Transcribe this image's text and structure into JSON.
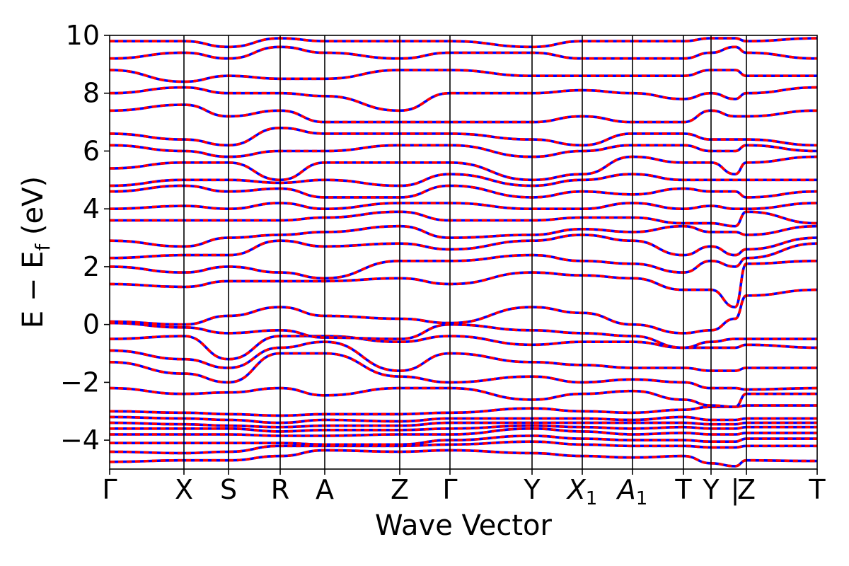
{
  "chart_data": {
    "type": "line",
    "title": "",
    "xlabel": "Wave Vector",
    "ylabel_parts": [
      "E − E",
      "f",
      " (eV)"
    ],
    "ylim": [
      -5,
      10
    ],
    "y_ticks": [
      {
        "value": 10,
        "label": "10"
      },
      {
        "value": 8,
        "label": "8"
      },
      {
        "value": 6,
        "label": "6"
      },
      {
        "value": 4,
        "label": "4"
      },
      {
        "value": 2,
        "label": "2"
      },
      {
        "value": 0,
        "label": "0"
      },
      {
        "value": -2,
        "label": "−2"
      },
      {
        "value": -4,
        "label": "−4"
      }
    ],
    "k_points": [
      {
        "k": 0.0,
        "label": "Γ"
      },
      {
        "k": 0.105,
        "label": "X"
      },
      {
        "k": 0.168,
        "label": "S"
      },
      {
        "k": 0.241,
        "label": "R"
      },
      {
        "k": 0.304,
        "label": "A"
      },
      {
        "k": 0.41,
        "label": "Z"
      },
      {
        "k": 0.481,
        "label": "Γ"
      },
      {
        "k": 0.597,
        "label": "Y"
      },
      {
        "k": 0.668,
        "label": "X",
        "sub": "1"
      },
      {
        "k": 0.739,
        "label": "A",
        "sub": "1"
      },
      {
        "k": 0.811,
        "label": "T"
      },
      {
        "k": 0.85,
        "label": "Y"
      },
      {
        "k": 0.884,
        "label": "|",
        "discontinuity": true
      },
      {
        "k": 0.9,
        "label": "Z"
      },
      {
        "k": 1.0,
        "label": "T"
      }
    ],
    "styles": {
      "band_a_color": "#ff0000",
      "band_b_color": "#0000ff",
      "band_b_dashed": true
    },
    "bands": [
      [
        -4.75,
        -4.7,
        -4.7,
        -4.55,
        -4.35,
        -4.4,
        -4.35,
        -4.45,
        -4.55,
        -4.6,
        -4.55,
        -4.8,
        -4.9,
        -4.7,
        -4.72
      ],
      [
        -4.4,
        -4.45,
        -4.4,
        -4.2,
        -4.2,
        -4.2,
        -4.15,
        -4.05,
        -4.15,
        -4.2,
        -4.2,
        -4.25,
        -4.25,
        -4.2,
        -4.2
      ],
      [
        -4.1,
        -4.1,
        -4.1,
        -4.1,
        -4.15,
        -4.15,
        -4.0,
        -3.85,
        -3.95,
        -4.0,
        -4.0,
        -4.05,
        -4.05,
        -3.95,
        -3.95
      ],
      [
        -3.8,
        -3.8,
        -3.8,
        -3.85,
        -3.85,
        -3.8,
        -3.8,
        -3.6,
        -3.7,
        -3.8,
        -3.75,
        -3.8,
        -3.8,
        -3.75,
        -3.75
      ],
      [
        -3.6,
        -3.6,
        -3.6,
        -3.7,
        -3.65,
        -3.65,
        -3.6,
        -3.5,
        -3.55,
        -3.6,
        -3.55,
        -3.6,
        -3.6,
        -3.55,
        -3.55
      ],
      [
        -3.4,
        -3.45,
        -3.5,
        -3.55,
        -3.5,
        -3.5,
        -3.4,
        -3.4,
        -3.4,
        -3.4,
        -3.4,
        -3.45,
        -3.45,
        -3.4,
        -3.4
      ],
      [
        -3.2,
        -3.25,
        -3.3,
        -3.4,
        -3.3,
        -3.35,
        -3.25,
        -3.25,
        -3.25,
        -3.3,
        -3.2,
        -3.3,
        -3.3,
        -3.25,
        -3.25
      ],
      [
        -3.0,
        -3.05,
        -3.1,
        -3.15,
        -3.1,
        -3.1,
        -3.05,
        -2.9,
        -3.0,
        -3.05,
        -2.95,
        -2.85,
        -2.85,
        -2.8,
        -2.8
      ],
      [
        -2.2,
        -2.4,
        -2.35,
        -2.2,
        -2.45,
        -2.2,
        -2.2,
        -2.6,
        -2.4,
        -2.3,
        -2.6,
        -2.8,
        -2.85,
        -2.4,
        -2.4
      ],
      [
        -1.3,
        -1.7,
        -2.0,
        -1.0,
        -1.0,
        -1.8,
        -2.0,
        -1.8,
        -2.0,
        -1.9,
        -2.0,
        -2.2,
        -2.2,
        -2.25,
        -2.2
      ],
      [
        -0.9,
        -1.2,
        -1.5,
        -0.8,
        -0.6,
        -1.6,
        -1.0,
        -1.3,
        -1.4,
        -1.5,
        -1.5,
        -1.6,
        -1.6,
        -1.5,
        -1.5
      ],
      [
        -0.5,
        -0.4,
        -1.2,
        -0.4,
        -0.4,
        -0.6,
        -0.4,
        -0.7,
        -0.6,
        -0.6,
        -0.8,
        -0.8,
        -0.8,
        -0.7,
        -0.8
      ],
      [
        0.05,
        -0.1,
        -0.3,
        -0.2,
        -0.45,
        -0.5,
        0.0,
        -0.2,
        -0.3,
        -0.4,
        -0.8,
        -0.6,
        -0.5,
        -0.5,
        -0.5
      ],
      [
        0.1,
        0.0,
        0.3,
        0.6,
        0.3,
        0.2,
        0.05,
        0.6,
        0.4,
        0.0,
        -0.3,
        -0.2,
        0.2,
        1.0,
        1.2
      ],
      [
        1.4,
        1.3,
        1.5,
        1.5,
        1.5,
        1.6,
        1.4,
        1.8,
        1.7,
        1.6,
        1.2,
        1.2,
        0.6,
        2.1,
        2.2
      ],
      [
        2.0,
        1.8,
        2.0,
        1.8,
        1.6,
        2.2,
        2.2,
        2.4,
        2.2,
        2.1,
        1.8,
        2.2,
        2.0,
        2.3,
        2.8
      ],
      [
        2.3,
        2.4,
        2.4,
        2.9,
        2.7,
        2.8,
        2.6,
        2.9,
        3.1,
        2.9,
        2.4,
        2.7,
        2.4,
        2.6,
        3.0
      ],
      [
        2.9,
        2.7,
        3.0,
        3.1,
        3.2,
        3.4,
        3.0,
        3.1,
        3.3,
        3.2,
        3.4,
        3.2,
        3.2,
        3.1,
        3.4
      ],
      [
        3.6,
        3.6,
        3.6,
        3.6,
        3.7,
        3.9,
        3.6,
        3.6,
        3.7,
        3.7,
        3.5,
        3.5,
        3.4,
        3.9,
        3.5
      ],
      [
        4.0,
        4.1,
        4.0,
        4.2,
        4.0,
        4.2,
        4.2,
        4.0,
        4.0,
        4.2,
        4.0,
        4.1,
        4.0,
        4.0,
        4.2
      ],
      [
        4.6,
        4.8,
        4.6,
        4.7,
        4.4,
        4.4,
        4.8,
        4.4,
        4.6,
        4.5,
        4.7,
        4.6,
        4.6,
        4.4,
        4.6
      ],
      [
        4.8,
        5.0,
        5.0,
        4.9,
        5.0,
        4.8,
        5.2,
        4.8,
        5.0,
        5.2,
        5.0,
        5.0,
        5.0,
        5.0,
        5.0
      ],
      [
        5.4,
        5.6,
        5.6,
        5.0,
        5.6,
        5.6,
        5.6,
        5.0,
        5.2,
        5.8,
        5.6,
        5.6,
        5.2,
        5.6,
        5.8
      ],
      [
        6.2,
        6.0,
        5.8,
        6.0,
        6.0,
        6.2,
        6.2,
        5.8,
        6.0,
        6.2,
        6.2,
        6.0,
        6.0,
        6.2,
        6.0
      ],
      [
        6.6,
        6.4,
        6.2,
        6.8,
        6.6,
        6.6,
        6.6,
        6.4,
        6.2,
        6.6,
        6.6,
        6.4,
        6.4,
        6.4,
        6.2
      ],
      [
        7.4,
        7.6,
        7.2,
        7.4,
        7.0,
        7.0,
        7.0,
        7.0,
        7.2,
        7.0,
        7.0,
        7.4,
        7.2,
        7.2,
        7.4
      ],
      [
        8.0,
        8.2,
        8.0,
        8.0,
        7.9,
        7.4,
        8.0,
        8.0,
        8.1,
        8.0,
        7.8,
        8.0,
        7.8,
        8.0,
        8.2
      ],
      [
        8.8,
        8.4,
        8.6,
        8.5,
        8.5,
        8.8,
        8.8,
        8.6,
        8.6,
        8.6,
        8.6,
        8.8,
        8.8,
        8.6,
        8.6
      ],
      [
        9.2,
        9.4,
        9.2,
        9.6,
        9.4,
        9.2,
        9.4,
        9.4,
        9.2,
        9.2,
        9.2,
        9.4,
        9.6,
        9.4,
        9.2
      ],
      [
        9.8,
        9.8,
        9.6,
        9.9,
        9.8,
        9.8,
        9.8,
        9.6,
        9.8,
        9.8,
        9.8,
        9.9,
        9.9,
        9.8,
        9.9
      ]
    ]
  }
}
